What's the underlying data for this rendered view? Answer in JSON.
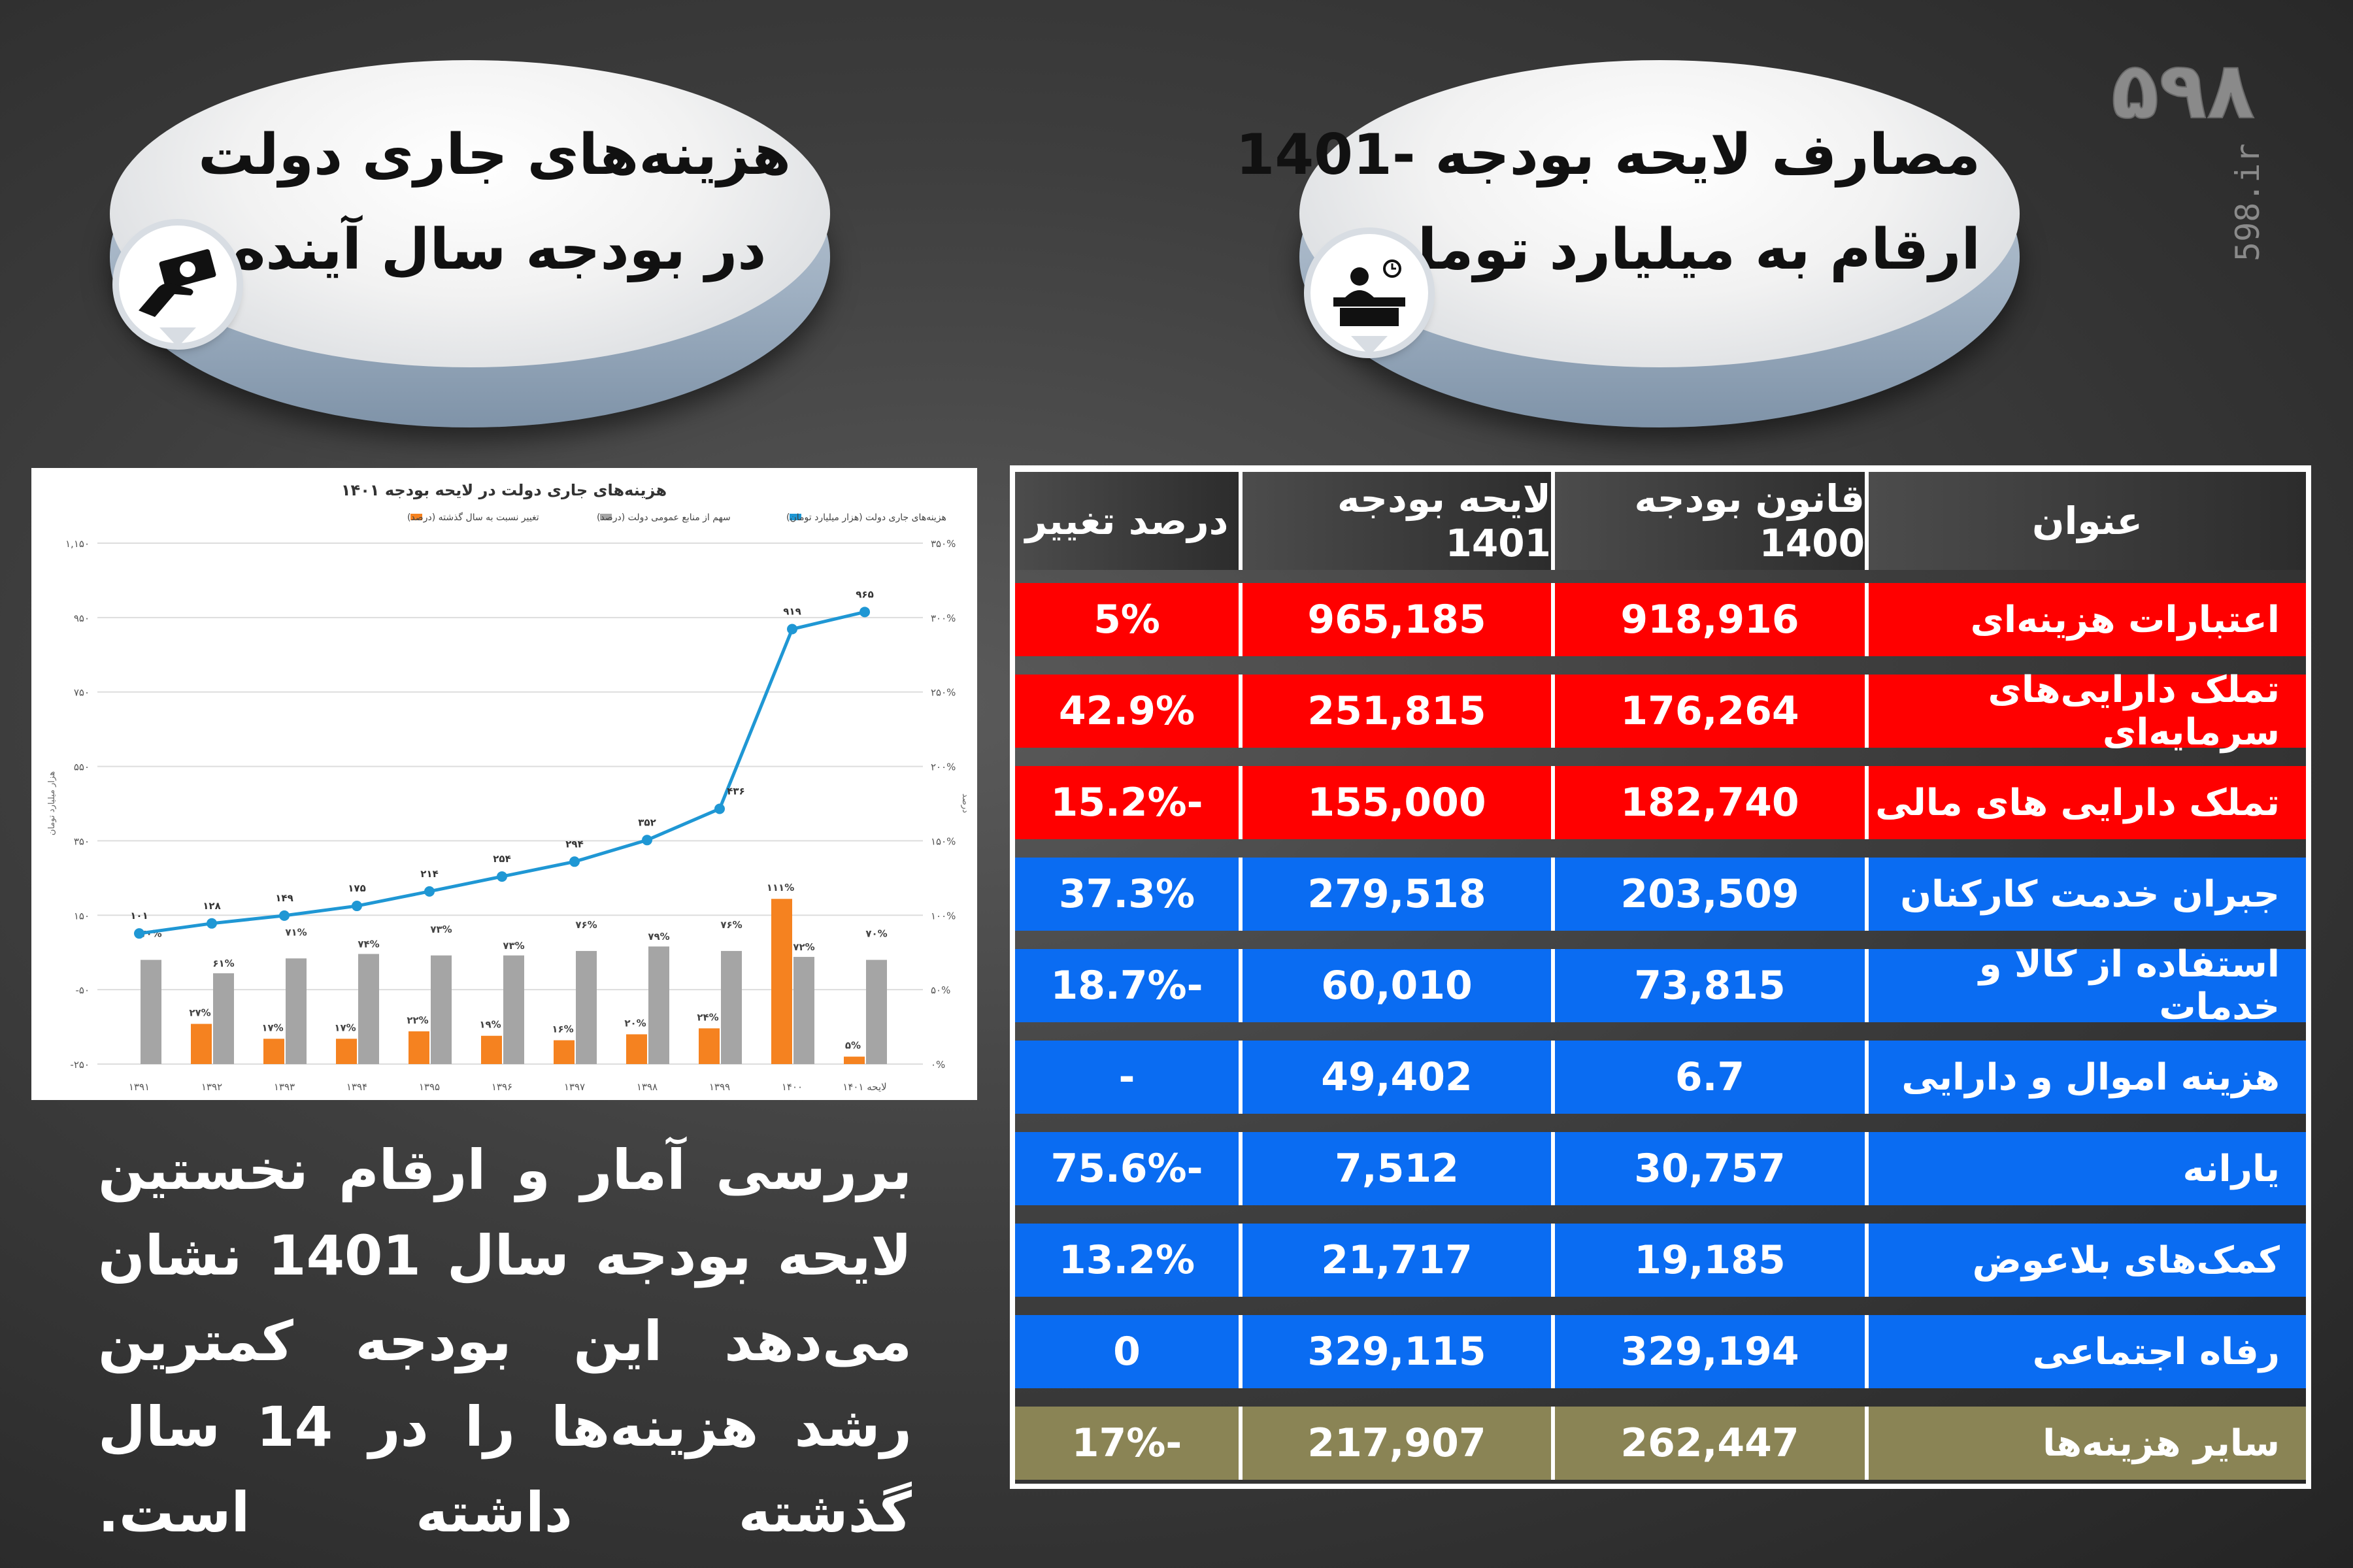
{
  "left_title": {
    "line1": "هزینه‌های جاری دولت",
    "line2": "در بودجه سال آینده",
    "icon": "money-hand-icon"
  },
  "right_title": {
    "line1": "مصارف لایحه بودجه -1401",
    "line2": "ارقام به میلیارد تومان",
    "icon": "desk-clerk-icon"
  },
  "logo": {
    "text": "۵۹۸",
    "site": "598.ir"
  },
  "paragraph": "بررسی آمار و ارقام نخستین لایحه بودجه سال 1401 نشان می‌دهد این بودجه کمترین رشد هزینه‌ها را در 14 سال گذشته داشته است.",
  "table": {
    "headers": [
      "عنوان",
      "قانون بودجه 1400",
      "لایحه بودجه 1401",
      "درصد تغییر"
    ],
    "colors": {
      "red": "#ff0000",
      "blue": "#0a6cf2",
      "olive": "#8a8455"
    },
    "rows": [
      {
        "title": "اعتبارات هزینه‌ای",
        "b1400": "918,916",
        "b1401": "965,185",
        "change": "5%",
        "color": "red"
      },
      {
        "title": "تملک دارایی‌های سرمایه‌ای",
        "b1400": "176,264",
        "b1401": "251,815",
        "change": "42.9%",
        "color": "red"
      },
      {
        "title": "تملک دارایی های مالی",
        "b1400": "182,740",
        "b1401": "155,000",
        "change": "-15.2%",
        "color": "red"
      },
      {
        "title": "جبران خدمت کارکنان",
        "b1400": "203,509",
        "b1401": "279,518",
        "change": "37.3%",
        "color": "blue"
      },
      {
        "title": "استفاده از کالا و خدمات",
        "b1400": "73,815",
        "b1401": "60,010",
        "change": "-18.7%",
        "color": "blue"
      },
      {
        "title": "هزینه اموال و دارایی",
        "b1400": "6.7",
        "b1401": "49,402",
        "change": "-",
        "color": "blue"
      },
      {
        "title": "یارانه",
        "b1400": "30,757",
        "b1401": "7,512",
        "change": "-75.6%",
        "color": "blue"
      },
      {
        "title": "کمک‌های بلاعوض",
        "b1400": "19,185",
        "b1401": "21,717",
        "change": "13.2%",
        "color": "blue"
      },
      {
        "title": "رفاه اجتماعی",
        "b1400": "329,194",
        "b1401": "329,115",
        "change": "0",
        "color": "blue"
      },
      {
        "title": "سایر هزینه‌ها",
        "b1400": "262,447",
        "b1401": "217,907",
        "change": "-17%",
        "color": "olive"
      }
    ]
  },
  "chart_data": {
    "type": "bar",
    "title": "هزینه‌های جاری دولت در لایحه بودجه ۱۴۰۱",
    "categories": [
      "۱۳۹۱",
      "۱۳۹۲",
      "۱۳۹۳",
      "۱۳۹۴",
      "۱۳۹۵",
      "۱۳۹۶",
      "۱۳۹۷",
      "۱۳۹۸",
      "۱۳۹۹",
      "۱۴۰۰",
      "لایحه ۱۴۰۱"
    ],
    "ylabel": "هزار میلیارد تومان",
    "y2label": "درصد",
    "ylim": [
      -250,
      1150
    ],
    "y2lim": [
      0,
      350
    ],
    "yticks": [
      "-۲۵۰",
      "-۵۰",
      "۱۵۰",
      "۳۵۰",
      "۵۵۰",
      "۷۵۰",
      "۹۵۰",
      "۱,۱۵۰"
    ],
    "y2ticks": [
      "۰%",
      "۵۰%",
      "۱۰۰%",
      "۱۵۰%",
      "۲۰۰%",
      "۲۵۰%",
      "۳۰۰%",
      "۳۵۰%"
    ],
    "series": [
      {
        "name": "هزینه‌های جاری دولت (هزار میلیارد تومان)",
        "kind": "line",
        "axis": "left",
        "color": "#1f97d4",
        "values": [
          101,
          128,
          149,
          175,
          214,
          254,
          294,
          352,
          436,
          919,
          965
        ],
        "labels": [
          "۱۰۱",
          "۱۲۸",
          "۱۴۹",
          "۱۷۵",
          "۲۱۴",
          "۲۵۴",
          "۲۹۴",
          "۳۵۲",
          "۴۳۶",
          "۹۱۹",
          "۹۶۵"
        ]
      },
      {
        "name": "سهم از منابع عمومی دولت (درصد)",
        "kind": "bar",
        "axis": "right",
        "color": "#a5a5a5",
        "values": [
          70,
          61,
          71,
          74,
          73,
          73,
          76,
          79,
          76,
          72,
          70
        ],
        "labels": [
          "۷۰%",
          "۶۱%",
          "۷۱%",
          "۷۴%",
          "۷۳%",
          "۷۳%",
          "۷۶%",
          "۷۹%",
          "۷۶%",
          "۷۲%",
          "۷۰%"
        ]
      },
      {
        "name": "تغییر نسبت به سال گذشته (درصد)",
        "kind": "bar",
        "axis": "right",
        "color": "#f58220",
        "values": [
          null,
          27,
          17,
          17,
          22,
          19,
          16,
          20,
          24,
          111,
          5
        ],
        "labels": [
          "",
          "۲۷%",
          "۱۷%",
          "۱۷%",
          "۲۲%",
          "۱۹%",
          "۱۶%",
          "۲۰%",
          "۲۴%",
          "۱۱۱%",
          "۵%"
        ]
      }
    ],
    "legend": "top"
  }
}
